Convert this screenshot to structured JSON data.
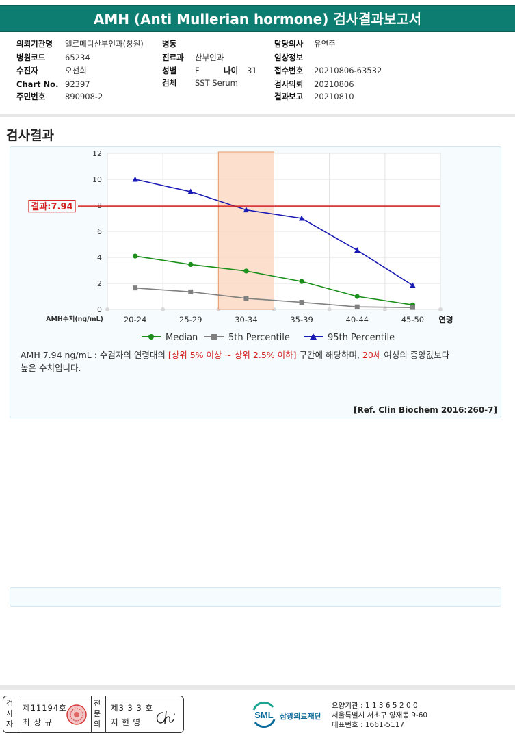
{
  "header": {
    "title": "AMH (Anti Mullerian hormone) 검사결과보고서"
  },
  "info": {
    "hospital_label": "의뢰기관명",
    "hospital": "엘르메디산부인과(창원)",
    "ward_label": "병동",
    "ward": "",
    "doctor_label": "담당의사",
    "doctor": "유연주",
    "hospital_code_label": "병원코드",
    "hospital_code": "65234",
    "dept_label": "진료과",
    "dept": "산부인과",
    "clinical_label": "임상정보",
    "clinical": "",
    "patient_label": "수진자",
    "patient": "오선희",
    "sex_label": "성별",
    "sex": "F",
    "age_label": "나이",
    "age": "31",
    "receipt_label": "접수번호",
    "receipt": "20210806-63532",
    "chart_label": "Chart No.",
    "chart": "92397",
    "specimen_label": "검체",
    "specimen": "SST Serum",
    "request_label": "검사의뢰",
    "request": "20210806",
    "ssn_label": "주민번호",
    "ssn": "890908-2",
    "report_label": "결과보고",
    "report": "20210810"
  },
  "section": {
    "title": "검사결과"
  },
  "chart_data": {
    "type": "line",
    "categories": [
      "20-24",
      "25-29",
      "30-34",
      "35-39",
      "40-44",
      "45-50"
    ],
    "xlabel": "연령",
    "ylabel": "AMH수치(ng/mL)",
    "ylim": [
      0,
      12
    ],
    "yticks": [
      "0",
      "2",
      "4",
      "6",
      "8",
      "10",
      "12"
    ],
    "grid": true,
    "legend_position": "bottom",
    "series": [
      {
        "name": "Median",
        "color": "#1a8f1a",
        "marker": "circle",
        "values": [
          4.1,
          3.45,
          2.95,
          2.15,
          1.0,
          0.35
        ]
      },
      {
        "name": "5th Percentile",
        "color": "#808080",
        "marker": "square",
        "values": [
          1.65,
          1.35,
          0.85,
          0.55,
          0.2,
          0.15
        ]
      },
      {
        "name": "95th Percentile",
        "color": "#1a1ab5",
        "marker": "triangle",
        "values": [
          10.0,
          9.05,
          7.65,
          7.0,
          4.55,
          1.85
        ]
      }
    ],
    "highlight_band": {
      "category": "30-34",
      "fill": "#fbd9c3",
      "stroke": "#e59a6a"
    },
    "result_line": {
      "value": 7.94,
      "label": "결과:7.94",
      "color": "#d42020"
    }
  },
  "interpretation": {
    "part1": "AMH  7.94 ng/mL : 수검자의 연령대의 ",
    "highlight1": "[상위 5% 이상 ~ 상위 2.5% 이하]",
    "part2": "  구간에 해당하며, ",
    "highlight2": "20세",
    "part3": " 여성의 중앙값보다",
    "line2": "높은 수치입니다.",
    "reference": "[Ref. Clin Biochem 2016:260-7]"
  },
  "signature": {
    "tester_label": "검사자",
    "tester_license": "제11194호",
    "tester_name": "최 상 규",
    "specialist_label": "전문의",
    "specialist_license": "제3 3 3 호",
    "specialist_name": "지 현 영"
  },
  "institution": {
    "logo_text": "SML",
    "name": "삼광의료재단",
    "code": "요양기관 : 1 1 3 6 5 2 0 0",
    "address": "서울특별시 서초구 양재동 9-60",
    "phone": "대표번호 : 1661-5117"
  },
  "colors": {
    "header_bg": "#0d7d71",
    "accent_red": "#d42020",
    "panel_bg": "#f6fbfd"
  }
}
